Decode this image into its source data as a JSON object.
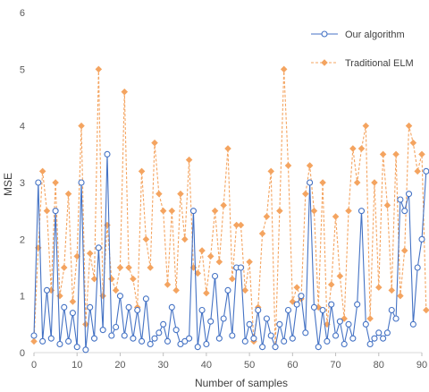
{
  "chart_data": {
    "type": "line",
    "title": "",
    "xlabel": "Number of samples",
    "ylabel": "MSE",
    "xlim": [
      0,
      90
    ],
    "ylim": [
      0,
      6
    ],
    "xticks": [
      0,
      10,
      20,
      30,
      40,
      50,
      60,
      70,
      80,
      90
    ],
    "yticks": [
      0,
      1,
      2,
      3,
      4,
      5,
      6
    ],
    "grid": false,
    "legend": "top-right",
    "series": [
      {
        "name": "Our algorithm",
        "color": "#4472C4",
        "style": "solid",
        "marker": "circle",
        "values": [
          0.3,
          3.0,
          0.2,
          1.1,
          0.25,
          2.5,
          0.15,
          0.8,
          0.2,
          0.7,
          0.1,
          3.0,
          0.05,
          0.8,
          0.25,
          1.85,
          0.4,
          3.5,
          0.3,
          0.45,
          1.0,
          0.3,
          0.8,
          0.25,
          0.75,
          0.2,
          0.95,
          0.15,
          0.25,
          0.35,
          0.5,
          0.2,
          0.8,
          0.4,
          0.15,
          0.2,
          0.25,
          2.5,
          0.1,
          0.75,
          0.15,
          0.55,
          1.35,
          0.25,
          0.6,
          1.1,
          0.3,
          1.5,
          1.5,
          0.2,
          0.5,
          0.25,
          0.75,
          0.1,
          0.6,
          0.3,
          0.1,
          0.5,
          0.2,
          0.75,
          0.25,
          0.85,
          1.0,
          0.35,
          3.0,
          0.8,
          0.1,
          0.75,
          0.2,
          0.85,
          0.3,
          0.55,
          0.15,
          0.5,
          0.25,
          0.85,
          2.5,
          0.5,
          0.15,
          0.25,
          0.35,
          0.25,
          0.35,
          0.75,
          0.6,
          2.7,
          2.5,
          2.8,
          0.5,
          1.5,
          2.0,
          3.2
        ]
      },
      {
        "name": "Traditional ELM",
        "color": "#F4A460",
        "style": "dashed",
        "marker": "diamond",
        "values": [
          0.2,
          1.85,
          3.2,
          2.5,
          1.1,
          3.0,
          1.0,
          1.5,
          2.8,
          0.9,
          1.7,
          4.0,
          0.5,
          1.75,
          1.3,
          5.0,
          1.0,
          2.25,
          1.3,
          1.1,
          1.5,
          4.6,
          1.5,
          1.3,
          0.8,
          3.2,
          2.0,
          1.5,
          3.7,
          2.8,
          2.5,
          1.2,
          2.5,
          1.1,
          2.8,
          2.0,
          3.4,
          1.5,
          1.4,
          1.8,
          1.05,
          1.7,
          2.5,
          1.6,
          2.6,
          3.6,
          1.3,
          2.25,
          2.25,
          1.1,
          1.6,
          0.2,
          0.8,
          2.1,
          2.4,
          3.2,
          0.1,
          2.5,
          5.0,
          3.3,
          0.9,
          1.15,
          0.95,
          2.8,
          3.3,
          2.5,
          0.8,
          3.0,
          0.5,
          1.2,
          2.4,
          1.35,
          0.6,
          2.5,
          3.6,
          3.0,
          3.6,
          4.0,
          0.6,
          3.0,
          1.15,
          3.5,
          2.6,
          1.1,
          3.5,
          1.0,
          1.8,
          4.0,
          3.7,
          3.2,
          3.5,
          0.75
        ]
      }
    ]
  }
}
